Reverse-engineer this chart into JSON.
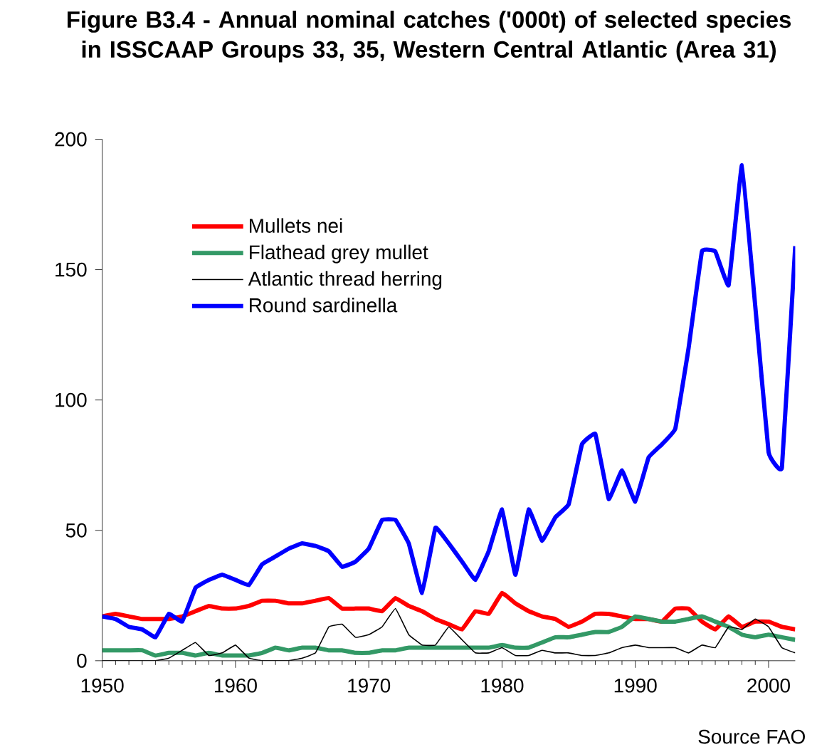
{
  "chart_data": {
    "type": "line",
    "title": "Figure B3.4 - Annual nominal catches ('000t) of selected species in ISSCAAP Groups 33, 35, Western Central Atlantic (Area 31)",
    "annotations": [
      "Source FAO"
    ],
    "x": [
      1950,
      1951,
      1952,
      1953,
      1954,
      1955,
      1956,
      1957,
      1958,
      1959,
      1960,
      1961,
      1962,
      1963,
      1964,
      1965,
      1966,
      1967,
      1968,
      1969,
      1970,
      1971,
      1972,
      1973,
      1974,
      1975,
      1976,
      1977,
      1978,
      1979,
      1980,
      1981,
      1982,
      1983,
      1984,
      1985,
      1986,
      1987,
      1988,
      1989,
      1990,
      1991,
      1992,
      1993,
      1994,
      1995,
      1996,
      1997,
      1998,
      1999,
      2000,
      2001,
      2002
    ],
    "series": [
      {
        "name": "Mullets nei",
        "color": "#ff0000",
        "values": [
          17,
          18,
          17,
          16,
          16,
          16,
          17,
          19,
          21,
          20,
          20,
          21,
          23,
          23,
          22,
          22,
          23,
          24,
          20,
          20,
          20,
          19,
          24,
          21,
          19,
          16,
          14,
          12,
          19,
          18,
          26,
          22,
          19,
          17,
          16,
          13,
          15,
          18,
          18,
          17,
          16,
          16,
          15,
          20,
          20,
          15,
          12,
          17,
          13,
          15,
          15,
          13,
          12
        ]
      },
      {
        "name": "Flathead grey mullet",
        "color": "#339966",
        "values": [
          4,
          4,
          4,
          4,
          2,
          3,
          3,
          2,
          3,
          2,
          2,
          2,
          3,
          5,
          4,
          5,
          5,
          4,
          4,
          3,
          3,
          4,
          4,
          5,
          5,
          5,
          5,
          5,
          5,
          5,
          6,
          5,
          5,
          7,
          9,
          9,
          10,
          11,
          11,
          13,
          17,
          16,
          15,
          15,
          16,
          17,
          15,
          13,
          10,
          9,
          10,
          9,
          8
        ]
      },
      {
        "name": "Atlantic thread herring",
        "color": "#000000",
        "values": [
          0,
          0,
          0,
          0,
          0,
          1,
          4,
          7,
          2,
          3,
          6,
          1,
          0,
          0,
          0,
          1,
          3,
          13,
          14,
          9,
          10,
          13,
          20,
          10,
          6,
          6,
          13,
          8,
          3,
          3,
          5,
          2,
          2,
          4,
          3,
          3,
          2,
          2,
          3,
          5,
          6,
          5,
          5,
          5,
          3,
          6,
          5,
          13,
          12,
          16,
          13,
          5,
          3
        ]
      },
      {
        "name": "Round sardinella",
        "color": "#0000ff",
        "values": [
          17,
          16,
          13,
          12,
          9,
          18,
          15,
          28,
          31,
          33,
          31,
          29,
          37,
          40,
          43,
          45,
          44,
          42,
          36,
          38,
          43,
          54,
          54,
          45,
          26,
          51,
          45,
          38,
          31,
          42,
          58,
          33,
          58,
          46,
          55,
          60,
          83,
          87,
          62,
          73,
          61,
          78,
          83,
          89,
          120,
          157,
          157,
          144,
          190,
          136,
          80,
          74,
          159
        ]
      }
    ],
    "xlim": [
      1950,
      2002
    ],
    "xticks": [
      1950,
      1960,
      1970,
      1980,
      1990,
      2000
    ],
    "ylim": [
      0,
      200
    ],
    "yticks": [
      0,
      50,
      100,
      150,
      200
    ],
    "grid": false,
    "legend": "top left",
    "marker": "none",
    "line_style": "solid"
  }
}
